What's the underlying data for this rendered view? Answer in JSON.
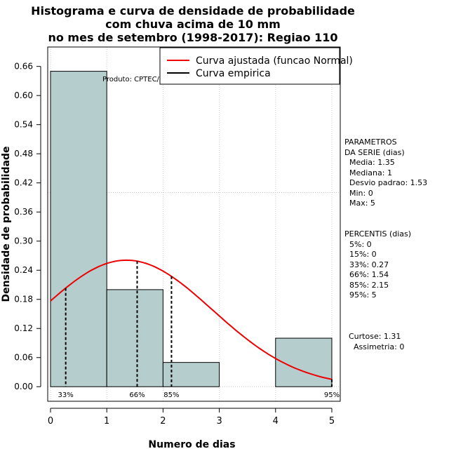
{
  "title": {
    "line1": "Histograma e curva de densidade de probabilidade",
    "line2": "com chuva acima de 10 mm",
    "line3": "no mes de setembro (1998-2017): Regiao 110"
  },
  "chart_data": {
    "type": "bar",
    "title": "Histograma e curva de densidade de probabilidade com chuva acima de 10 mm no mes de setembro (1998-2017): Regiao 110",
    "xlabel": "Numero de dias",
    "ylabel": "Densidade de probabilidade",
    "xlim": [
      -0.05,
      5.15
    ],
    "ylim": [
      -0.03,
      0.7
    ],
    "x_ticks": [
      0,
      1,
      2,
      3,
      4,
      5
    ],
    "y_ticks": [
      0.0,
      0.06,
      0.12,
      0.18,
      0.24,
      0.3,
      0.36,
      0.42,
      0.48,
      0.54,
      0.6,
      0.66
    ],
    "x_tick_labels": [
      "0",
      "1",
      "2",
      "3",
      "4",
      "5"
    ],
    "y_tick_labels": [
      "0.00",
      "0.06",
      "0.12",
      "0.18",
      "0.24",
      "0.30",
      "0.36",
      "0.42",
      "0.48",
      "0.54",
      "0.60",
      "0.66"
    ],
    "bins": [
      {
        "x0": 0,
        "x1": 1,
        "density": 0.65
      },
      {
        "x0": 1,
        "x1": 2,
        "density": 0.2
      },
      {
        "x0": 2,
        "x1": 3,
        "density": 0.05
      },
      {
        "x0": 3,
        "x1": 4,
        "density": 0.0
      },
      {
        "x0": 4,
        "x1": 5,
        "density": 0.1
      }
    ],
    "normal_curve": {
      "mean": 1.35,
      "sd": 1.53,
      "x_from": 0,
      "x_to": 5
    },
    "percentile_markers": [
      {
        "x": 0.27,
        "label": "33%"
      },
      {
        "x": 1.54,
        "label": "66%"
      },
      {
        "x": 2.15,
        "label": "85%"
      },
      {
        "x": 5,
        "label": "95%"
      }
    ],
    "grid": true,
    "legend": {
      "position": "top-right",
      "entries": [
        {
          "label": "Curva ajustada (funcao Normal)",
          "color": "#ee0000"
        },
        {
          "label": "Curva empirica",
          "color": "#000000"
        }
      ]
    },
    "annotation": "Produto: CPTEC/INPE",
    "colors": {
      "bar_fill": "#b5cdcd",
      "curve": "#ee0000",
      "grid": "#c8c8c8"
    }
  },
  "side_panel": {
    "params": [
      "PARAMETROS",
      "DA SERIE (dias)",
      "  Media: 1.35",
      "  Mediana: 1",
      "  Desvio padrao: 1.53",
      "  Min: 0",
      "  Max: 5"
    ],
    "percentis": [
      "PERCENTIS (dias)",
      "  5%: 0",
      "  15%: 0",
      "  33%: 0.27",
      "  66%: 1.54",
      "  85%: 2.15",
      "  95%: 5"
    ],
    "moments": [
      "Curtose: 1.31",
      "  Assimetria: 0"
    ]
  }
}
